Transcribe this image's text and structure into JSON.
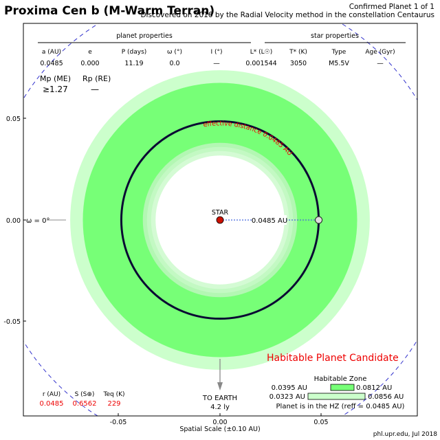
{
  "header": {
    "title": "Proxima Cen b (M-Warm Terran)",
    "confirmed": "Confirmed Planet 1 of 1",
    "discovery": "Discovered on 2016 by the Radial Velocity method in the constellation Centaurus"
  },
  "planet_properties": {
    "heading": "planet properties",
    "columns": [
      {
        "label": "a (AU)",
        "value": "0.0485"
      },
      {
        "label": "e",
        "value": "0.000"
      },
      {
        "label": "P (days)",
        "value": "11.19"
      },
      {
        "label": "ω (°)",
        "value": "0.0"
      },
      {
        "label": "I (°)",
        "value": "—"
      }
    ],
    "mass_label": "Mp (ME)",
    "mass_value": "≥1.27",
    "radius_label": "Rp (RE)",
    "radius_value": "—"
  },
  "star_properties": {
    "heading": "star properties",
    "columns": [
      {
        "label": "L* (L☉)",
        "value": "0.001544"
      },
      {
        "label": "T* (K)",
        "value": "3050"
      },
      {
        "label": "Type",
        "value": "M5.5V"
      },
      {
        "label": "Age (Gyr)",
        "value": "—"
      }
    ]
  },
  "diagram": {
    "star_label": "STAR",
    "orbit_distance_label": "0.0485 AU",
    "effective_distance_label": "effective distance 0.0485 AU",
    "omega_label": "ω = 0°",
    "to_earth_label": "TO EARTH",
    "distance_ly": "4.2 ly",
    "candidate_label": "Habitable Planet Candidate",
    "axis_label": "Spatial Scale (±0.10 AU)",
    "ticks_y": [
      "0.05",
      "0.00",
      "-0.05"
    ],
    "ticks_x": [
      "-0.05",
      "0.00",
      "0.05"
    ],
    "colors": {
      "optimistic_hz": "#ccffcc",
      "conservative_hz": "#77ff77",
      "inner_rings": [
        "#b3f7b3",
        "#c3f9c3",
        "#d4fbd4"
      ],
      "orbit": "#0a0a33",
      "star": "#cc1100",
      "candidate": "#ee0000",
      "stellar_values": "#ee0000",
      "dashed_circle": "#3333cc"
    },
    "chart_data": {
      "type": "orbit",
      "scale_au": [
        -0.1,
        0.1
      ],
      "orbit_radius_au": 0.0485,
      "omega_deg": 0.0,
      "hz_conservative_au": [
        0.0395,
        0.0812
      ],
      "hz_optimistic_au": [
        0.0323,
        0.0856
      ]
    }
  },
  "stellar_flux": {
    "columns": [
      {
        "label": "r (AU)",
        "value": "0.0485"
      },
      {
        "label": "S (S⊕)",
        "value": "0.6562"
      },
      {
        "label": "Teq (K)",
        "value": "229"
      }
    ]
  },
  "hz_legend": {
    "heading": "Habitable Zone",
    "conservative": [
      "0.0395 AU",
      "0.0812 AU"
    ],
    "optimistic": [
      "0.0323 AU",
      "0.0856 AU"
    ],
    "status": "Planet is in the HZ (reff = 0.0485 AU)"
  },
  "footer": {
    "credit": "phl.upr.edu, Jul 2018"
  }
}
